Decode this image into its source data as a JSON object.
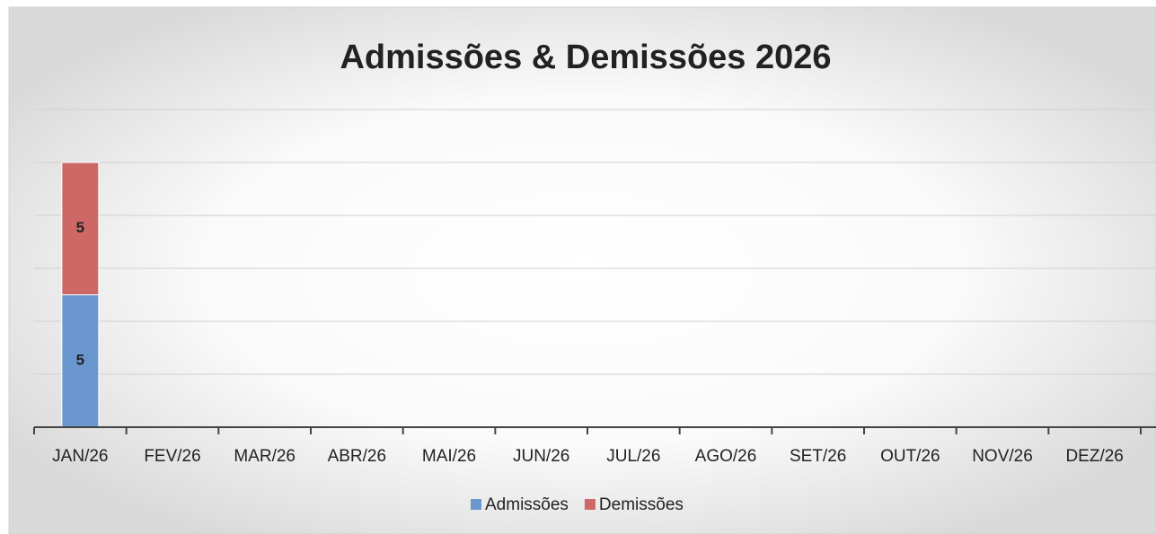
{
  "chart_data": {
    "type": "bar",
    "stacked": true,
    "title": "Admissões & Demissões 2026",
    "categories": [
      "JAN/26",
      "FEV/26",
      "MAR/26",
      "ABR/26",
      "MAI/26",
      "JUN/26",
      "JUL/26",
      "AGO/26",
      "SET/26",
      "OUT/26",
      "NOV/26",
      "DEZ/26"
    ],
    "series": [
      {
        "name": "Admissões",
        "color": "#6a97cd",
        "values": [
          5,
          null,
          null,
          null,
          null,
          null,
          null,
          null,
          null,
          null,
          null,
          null
        ]
      },
      {
        "name": "Demissões",
        "color": "#cd6866",
        "values": [
          5,
          null,
          null,
          null,
          null,
          null,
          null,
          null,
          null,
          null,
          null,
          null
        ]
      }
    ],
    "ylim": [
      0,
      12
    ],
    "yticks": [
      0,
      2,
      4,
      6,
      8,
      10,
      12
    ],
    "grid": true,
    "legend": "bottom"
  }
}
